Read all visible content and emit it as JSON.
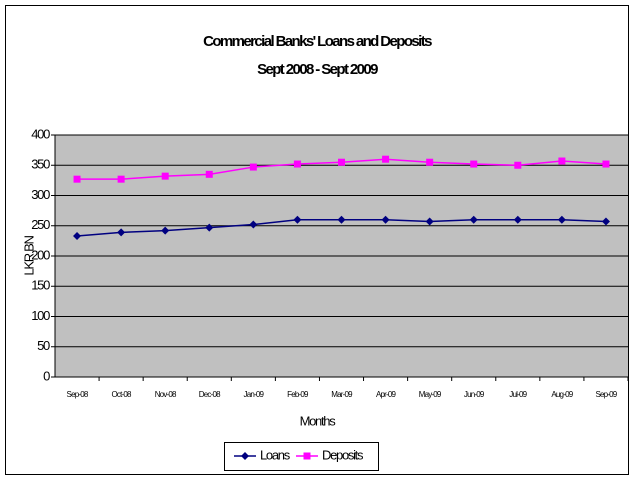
{
  "chart_data": {
    "type": "line",
    "title": "Commercial Banks' Loans and Deposits",
    "subtitle": "Sept 2008 - Sept 2009",
    "x_label": "Months",
    "y_label": "LKR BN",
    "categories": [
      "Sep-08",
      "Oct-08",
      "Nov-08",
      "Dec-08",
      "Jan-09",
      "Feb-09",
      "Mar-09",
      "Apr-09",
      "May-09",
      "Jun-09",
      "Jul-09",
      "Aug-09",
      "Sep-09"
    ],
    "series": [
      {
        "name": "Loans",
        "color": "#000080",
        "marker": "diamond",
        "values": [
          233,
          239,
          242,
          247,
          252,
          260,
          260,
          260,
          257,
          260,
          260,
          260,
          257
        ]
      },
      {
        "name": "Deposits",
        "color": "#ff00ff",
        "marker": "square",
        "values": [
          327,
          327,
          332,
          335,
          347,
          352,
          355,
          360,
          355,
          352,
          350,
          357,
          352
        ]
      }
    ],
    "ylim": [
      0,
      400
    ],
    "yticks": [
      0,
      50,
      100,
      150,
      200,
      250,
      300,
      350,
      400
    ],
    "grid": true,
    "legend": "bottom"
  }
}
